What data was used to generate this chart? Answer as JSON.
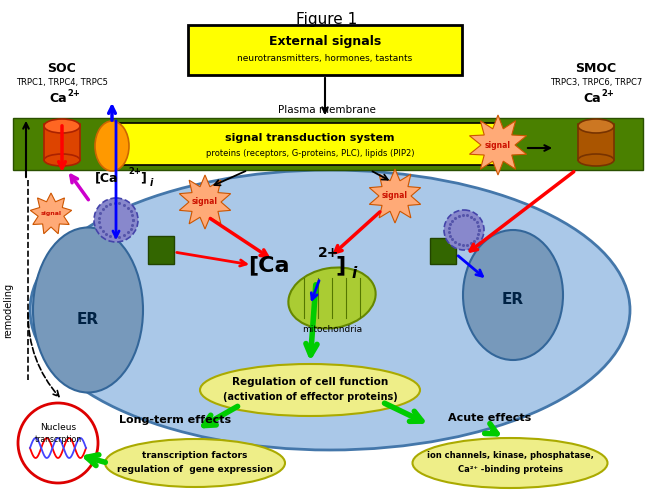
{
  "title": "Figure 1",
  "bg_color": "#ffffff",
  "external_text1": "External signals",
  "external_text2": "neurotransmitters, hormones, tastants",
  "plasma_membrane_label": "Plasma membrane",
  "signal_box_text1": "signal transduction system",
  "signal_box_text2": "proteins (receptors, G-proteins, PLC), lipids (PIP2)",
  "soc_label": "SOC",
  "soc_sub": "TRPC1, TRPC4, TRPC5",
  "smoc_label": "SMOC",
  "smoc_sub": "TRPC3, TRPC6, TRPC7",
  "er_label": "ER",
  "mito_label": "mitochondria",
  "nucleus_line1": "Nucleus",
  "nucleus_line2": "transcrption",
  "remodeling_label": "remodeling",
  "reg_cell_text1": "Regulation of cell function",
  "reg_cell_text2": "(activation of effector proteins)",
  "longterm_label": "Long-term effects",
  "trans_text1": "transcription factors",
  "trans_text2": "regulation of  gene expression",
  "acute_label": "Acute effects",
  "ion_text1": "ion channels, kinase, phosphatase,",
  "ion_text2": "Ca²⁺ -binding proteins",
  "signal_burst": "signal",
  "membrane_fc": "#4a8000",
  "membrane_ec": "#2a5000",
  "signal_box_fc": "#ffff00",
  "cell_fc": "#aac8e8",
  "cell_ec": "#4477aa",
  "er_fc": "#7799bb",
  "er_ec": "#336699",
  "mito_fc": "#aacc33",
  "mito_ec": "#668800",
  "chan_fc": "#336600",
  "stim_fc": "#8888cc",
  "stim_ec": "#4444aa",
  "burst_fc": "#ffaa77",
  "burst_ec": "#cc5500",
  "ellipse_fc": "#eeee88",
  "ellipse_ec": "#aaaa00",
  "nucleus_ec": "#dd0000",
  "soc_cyl_fc": "#dd4400",
  "soc_cyl_ec": "#aa2200",
  "soc_top_fc": "#ff6622",
  "smoc_cyl_fc": "#aa5500",
  "smoc_cyl_ec": "#773300",
  "smoc_top_fc": "#cc7722",
  "oval_fc": "#ff9900",
  "oval_ec": "#cc6600"
}
